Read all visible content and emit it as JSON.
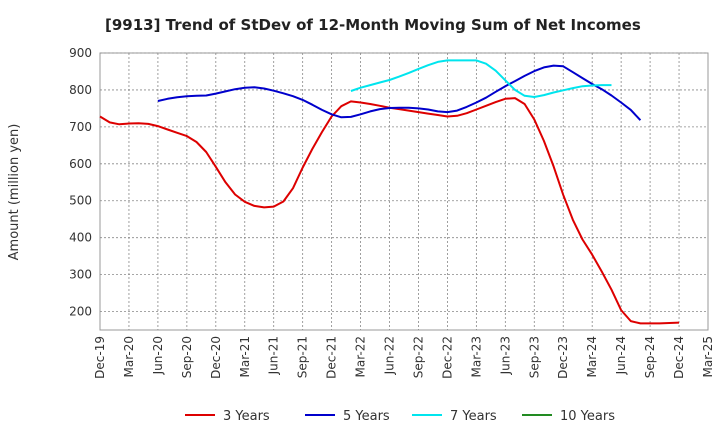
{
  "chart_data": {
    "type": "line",
    "title": "[9913]  Trend of StDev of 12-Month Moving Sum of Net Incomes",
    "ylabel": "Amount (million yen)",
    "xlabel": "",
    "ylim": [
      150,
      900
    ],
    "yticks": [
      200,
      300,
      400,
      500,
      600,
      700,
      800,
      900
    ],
    "x_tick_labels": [
      "Dec-19",
      "Mar-20",
      "Jun-20",
      "Sep-20",
      "Dec-20",
      "Mar-21",
      "Jun-21",
      "Sep-21",
      "Dec-21",
      "Mar-22",
      "Jun-22",
      "Sep-22",
      "Dec-22",
      "Mar-23",
      "Jun-23",
      "Sep-23",
      "Dec-23",
      "Mar-24",
      "Jun-24",
      "Sep-24",
      "Dec-24",
      "Mar-25"
    ],
    "grid": true,
    "legend_position": "bottom",
    "series": [
      {
        "name": "3 Years",
        "color": "#dd0000",
        "points": [
          [
            0,
            728
          ],
          [
            1,
            712
          ],
          [
            2,
            707
          ],
          [
            3,
            709
          ],
          [
            4,
            710
          ],
          [
            5,
            708
          ],
          [
            6,
            702
          ],
          [
            7,
            693
          ],
          [
            8,
            684
          ],
          [
            9,
            675
          ],
          [
            10,
            659
          ],
          [
            11,
            632
          ],
          [
            12,
            592
          ],
          [
            13,
            550
          ],
          [
            14,
            517
          ],
          [
            15,
            497
          ],
          [
            16,
            486
          ],
          [
            17,
            482
          ],
          [
            18,
            484
          ],
          [
            19,
            498
          ],
          [
            20,
            534
          ],
          [
            21,
            590
          ],
          [
            22,
            640
          ],
          [
            23,
            686
          ],
          [
            24,
            728
          ],
          [
            25,
            756
          ],
          [
            26,
            769
          ],
          [
            27,
            766
          ],
          [
            28,
            762
          ],
          [
            29,
            757
          ],
          [
            30,
            752
          ],
          [
            31,
            748
          ],
          [
            32,
            744
          ],
          [
            33,
            740
          ],
          [
            34,
            736
          ],
          [
            35,
            732
          ],
          [
            36,
            728
          ],
          [
            37,
            730
          ],
          [
            38,
            737
          ],
          [
            39,
            747
          ],
          [
            40,
            757
          ],
          [
            41,
            767
          ],
          [
            42,
            776
          ],
          [
            43,
            778
          ],
          [
            44,
            762
          ],
          [
            45,
            720
          ],
          [
            46,
            662
          ],
          [
            47,
            593
          ],
          [
            48,
            516
          ],
          [
            49,
            448
          ],
          [
            50,
            395
          ],
          [
            51,
            354
          ],
          [
            52,
            308
          ],
          [
            53,
            259
          ],
          [
            54,
            204
          ],
          [
            55,
            174
          ],
          [
            56,
            168
          ],
          [
            57,
            168
          ],
          [
            58,
            168
          ],
          [
            59,
            169
          ],
          [
            60,
            170
          ]
        ]
      },
      {
        "name": "5 Years",
        "color": "#0000cc",
        "points": [
          [
            6,
            770
          ],
          [
            7,
            776
          ],
          [
            8,
            780
          ],
          [
            9,
            783
          ],
          [
            10,
            784
          ],
          [
            11,
            785
          ],
          [
            12,
            790
          ],
          [
            13,
            796
          ],
          [
            14,
            802
          ],
          [
            15,
            806
          ],
          [
            16,
            807
          ],
          [
            17,
            804
          ],
          [
            18,
            798
          ],
          [
            19,
            791
          ],
          [
            20,
            783
          ],
          [
            21,
            773
          ],
          [
            22,
            760
          ],
          [
            23,
            746
          ],
          [
            24,
            734
          ],
          [
            25,
            726
          ],
          [
            26,
            727
          ],
          [
            27,
            734
          ],
          [
            28,
            742
          ],
          [
            29,
            748
          ],
          [
            30,
            751
          ],
          [
            31,
            752
          ],
          [
            32,
            752
          ],
          [
            33,
            750
          ],
          [
            34,
            747
          ],
          [
            35,
            742
          ],
          [
            36,
            740
          ],
          [
            37,
            744
          ],
          [
            38,
            754
          ],
          [
            39,
            766
          ],
          [
            40,
            779
          ],
          [
            41,
            795
          ],
          [
            42,
            810
          ],
          [
            43,
            824
          ],
          [
            44,
            838
          ],
          [
            45,
            851
          ],
          [
            46,
            861
          ],
          [
            47,
            866
          ],
          [
            48,
            864
          ],
          [
            49,
            848
          ],
          [
            50,
            832
          ],
          [
            51,
            816
          ],
          [
            52,
            802
          ],
          [
            53,
            785
          ],
          [
            54,
            766
          ],
          [
            55,
            746
          ],
          [
            56,
            718
          ]
        ]
      },
      {
        "name": "7 Years",
        "color": "#00e5ee",
        "points": [
          [
            26,
            797
          ],
          [
            27,
            806
          ],
          [
            28,
            813
          ],
          [
            29,
            820
          ],
          [
            30,
            827
          ],
          [
            31,
            836
          ],
          [
            32,
            846
          ],
          [
            33,
            857
          ],
          [
            34,
            867
          ],
          [
            35,
            876
          ],
          [
            36,
            880
          ],
          [
            37,
            880
          ],
          [
            38,
            880
          ],
          [
            39,
            880
          ],
          [
            40,
            871
          ],
          [
            41,
            852
          ],
          [
            42,
            826
          ],
          [
            43,
            800
          ],
          [
            44,
            784
          ],
          [
            45,
            781
          ],
          [
            46,
            786
          ],
          [
            47,
            793
          ],
          [
            48,
            799
          ],
          [
            49,
            805
          ],
          [
            50,
            810
          ],
          [
            51,
            812
          ],
          [
            52,
            813
          ],
          [
            53,
            813
          ]
        ]
      },
      {
        "name": "10 Years",
        "color": "#228b22",
        "points": []
      }
    ]
  }
}
